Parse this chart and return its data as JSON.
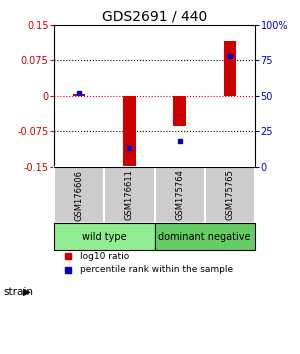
{
  "title": "GDS2691 / 440",
  "samples": [
    "GSM176606",
    "GSM176611",
    "GSM175764",
    "GSM175765"
  ],
  "log10_ratio": [
    0.003,
    -0.155,
    -0.065,
    0.115
  ],
  "percentile_rank": [
    52,
    13,
    18,
    78
  ],
  "groups": [
    {
      "label": "wild type",
      "samples": [
        0,
        1
      ],
      "color": "#90ee90"
    },
    {
      "label": "dominant negative",
      "samples": [
        2,
        3
      ],
      "color": "#66cc66"
    }
  ],
  "ylim": [
    -0.15,
    0.15
  ],
  "yticks_left": [
    -0.15,
    -0.075,
    0,
    0.075,
    0.15
  ],
  "ytick_labels_left": [
    "-0.15",
    "-0.075",
    "0",
    "0.075",
    "0.15"
  ],
  "yticks_right": [
    0,
    25,
    50,
    75,
    100
  ],
  "ytick_labels_right": [
    "0",
    "25",
    "50",
    "75",
    "100%"
  ],
  "bar_color_red": "#cc0000",
  "dot_color_blue": "#0000cc",
  "zero_line_color": "#cc0000",
  "group_label_x": "strain",
  "legend_red": "log10 ratio",
  "legend_blue": "percentile rank within the sample",
  "sample_box_color": "#cccccc",
  "title_fontsize": 10,
  "tick_fontsize": 7,
  "sample_fontsize": 6,
  "group_fontsize": 7,
  "legend_fontsize": 6.5,
  "strain_fontsize": 7.5,
  "bar_width": 0.25
}
